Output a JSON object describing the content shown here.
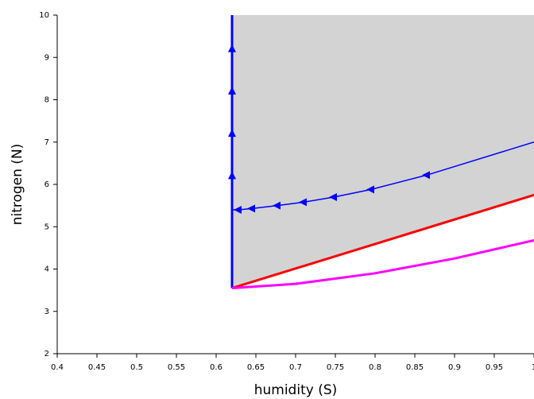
{
  "chart_data": {
    "type": "line",
    "xlabel": "humidity (S)",
    "ylabel": "nitrogen (N)",
    "xlim": [
      0.4,
      1
    ],
    "ylim": [
      2,
      10
    ],
    "xticks": [
      0.4,
      0.45,
      0.5,
      0.55,
      0.6,
      0.65,
      0.7,
      0.75,
      0.8,
      0.85,
      0.9,
      0.95,
      1
    ],
    "yticks": [
      2,
      3,
      4,
      5,
      6,
      7,
      8,
      9,
      10
    ],
    "fill_region": {
      "color": "#d3d3d3",
      "x": [
        0.62,
        0.62,
        1,
        1
      ],
      "y": [
        3.55,
        10,
        10,
        5.75
      ]
    },
    "series": [
      {
        "color": "#0000ff",
        "width": 3,
        "x": [
          0.62,
          0.62
        ],
        "y": [
          3.55,
          10
        ]
      },
      {
        "color": "#ff0000",
        "width": 3,
        "x": [
          0.62,
          1
        ],
        "y": [
          3.55,
          5.75
        ]
      },
      {
        "color": "#ff00ff",
        "width": 3,
        "x": [
          0.62,
          0.7,
          0.8,
          0.9,
          1
        ],
        "y": [
          3.55,
          3.65,
          3.9,
          4.25,
          4.68
        ]
      },
      {
        "color": "#0000ff",
        "width": 1.5,
        "x": [
          1,
          0.865,
          0.795,
          0.748,
          0.71,
          0.677,
          0.645,
          0.628,
          0.62
        ],
        "y": [
          7.0,
          6.22,
          5.88,
          5.7,
          5.58,
          5.5,
          5.43,
          5.4,
          5.4
        ]
      },
      {
        "color": "#0000ff",
        "marker": "triangle-up",
        "x": [
          0.62,
          0.62,
          0.62,
          0.62
        ],
        "y": [
          6.2,
          7.2,
          8.2,
          9.2
        ]
      },
      {
        "color": "#0000ff",
        "marker": "triangle-left",
        "x": [
          0.865,
          0.795,
          0.748,
          0.71,
          0.677,
          0.645,
          0.628
        ],
        "y": [
          6.22,
          5.88,
          5.7,
          5.58,
          5.5,
          5.43,
          5.4
        ]
      }
    ]
  }
}
